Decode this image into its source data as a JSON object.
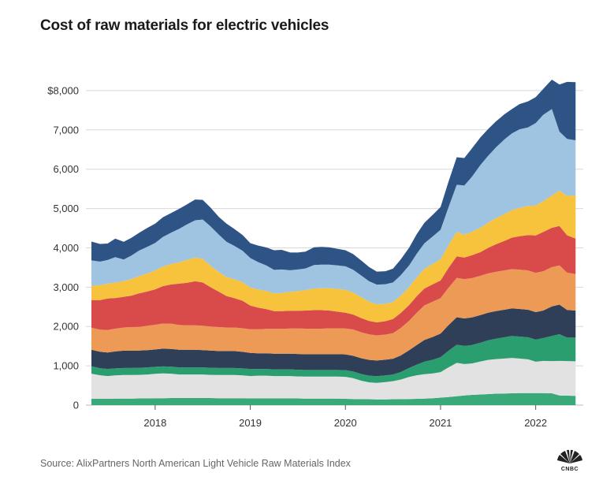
{
  "header": {
    "title": "Cost of raw materials for electric vehicles"
  },
  "footer": {
    "source": "Source: AlixPartners North American Light Vehicle Raw Materials Index",
    "logo_text": "CNBC",
    "logo": "cnbc-peacock-logo"
  },
  "chart_data": {
    "type": "area",
    "stacked": true,
    "title": "Cost of raw materials for electric vehicles",
    "xlabel": "",
    "ylabel": "",
    "ylim": [
      0,
      8700
    ],
    "yticks": [
      0,
      1000,
      2000,
      3000,
      4000,
      5000,
      6000,
      7000,
      8000
    ],
    "ytick_labels": [
      "0",
      "1,000",
      "2,000",
      "3,000",
      "4,000",
      "5,000",
      "6,000",
      "7,000",
      "$8,000"
    ],
    "xlim": [
      2017.33,
      2022.5
    ],
    "xticks": [
      2018,
      2019,
      2020,
      2021,
      2022
    ],
    "xtick_labels": [
      "2018",
      "2019",
      "2020",
      "2021",
      "2022"
    ],
    "grid": true,
    "x": [
      2017.33,
      2017.42,
      2017.5,
      2017.58,
      2017.67,
      2017.75,
      2017.83,
      2017.92,
      2018,
      2018.08,
      2018.17,
      2018.25,
      2018.33,
      2018.42,
      2018.5,
      2018.58,
      2018.67,
      2018.75,
      2018.83,
      2018.92,
      2019,
      2019.08,
      2019.17,
      2019.25,
      2019.33,
      2019.42,
      2019.5,
      2019.58,
      2019.67,
      2019.75,
      2019.83,
      2019.92,
      2020,
      2020.08,
      2020.17,
      2020.25,
      2020.33,
      2020.42,
      2020.5,
      2020.58,
      2020.67,
      2020.75,
      2020.83,
      2020.92,
      2021,
      2021.08,
      2021.17,
      2021.25,
      2021.33,
      2021.42,
      2021.5,
      2021.58,
      2021.67,
      2021.75,
      2021.83,
      2021.92,
      2022,
      2022.08,
      2022.17,
      2022.25,
      2022.33,
      2022.42
    ],
    "series": [
      {
        "color": "#3aa97a",
        "values": [
          160,
          160,
          160,
          165,
          165,
          165,
          170,
          170,
          175,
          175,
          180,
          180,
          180,
          180,
          180,
          180,
          175,
          175,
          175,
          175,
          170,
          170,
          170,
          170,
          170,
          170,
          170,
          165,
          165,
          165,
          165,
          165,
          160,
          155,
          150,
          150,
          145,
          145,
          150,
          150,
          155,
          160,
          165,
          175,
          190,
          205,
          225,
          245,
          260,
          270,
          280,
          290,
          295,
          300,
          305,
          305,
          305,
          305,
          300,
          245,
          240,
          235
        ]
      },
      {
        "color": "#e2e2e2",
        "values": [
          640,
          600,
          580,
          590,
          600,
          600,
          600,
          610,
          620,
          630,
          620,
          600,
          600,
          600,
          600,
          590,
          590,
          590,
          590,
          580,
          570,
          580,
          580,
          570,
          570,
          570,
          560,
          560,
          560,
          560,
          560,
          560,
          560,
          530,
          470,
          430,
          420,
          440,
          460,
          500,
          560,
          600,
          620,
          630,
          650,
          750,
          850,
          800,
          800,
          840,
          870,
          880,
          890,
          900,
          880,
          860,
          800,
          820,
          820,
          880,
          880,
          880
        ]
      },
      {
        "color": "#2a9e6e",
        "values": [
          190,
          180,
          180,
          180,
          180,
          180,
          180,
          180,
          180,
          180,
          180,
          180,
          180,
          180,
          180,
          180,
          180,
          180,
          180,
          180,
          180,
          170,
          170,
          170,
          170,
          170,
          170,
          170,
          170,
          170,
          170,
          170,
          170,
          170,
          170,
          170,
          170,
          170,
          170,
          190,
          230,
          270,
          320,
          350,
          380,
          420,
          460,
          460,
          470,
          480,
          500,
          520,
          540,
          560,
          560,
          560,
          560,
          580,
          640,
          680,
          600,
          600
        ]
      },
      {
        "color": "#2e3f57",
        "values": [
          420,
          420,
          420,
          430,
          440,
          440,
          440,
          440,
          440,
          450,
          450,
          450,
          450,
          450,
          440,
          440,
          430,
          430,
          430,
          420,
          410,
          400,
          400,
          400,
          400,
          400,
          400,
          400,
          400,
          400,
          400,
          400,
          400,
          400,
          400,
          400,
          400,
          400,
          400,
          420,
          450,
          500,
          550,
          580,
          600,
          650,
          700,
          700,
          700,
          700,
          700,
          700,
          700,
          700,
          700,
          700,
          700,
          700,
          750,
          750,
          700,
          690
        ]
      },
      {
        "color": "#ee9a57",
        "values": [
          560,
          560,
          570,
          580,
          590,
          600,
          600,
          620,
          630,
          640,
          640,
          630,
          620,
          620,
          620,
          610,
          610,
          600,
          600,
          600,
          600,
          610,
          620,
          630,
          630,
          640,
          650,
          650,
          650,
          650,
          660,
          660,
          660,
          670,
          660,
          650,
          640,
          640,
          650,
          700,
          750,
          820,
          880,
          900,
          900,
          950,
          1000,
          1000,
          1000,
          1000,
          1000,
          1000,
          1000,
          1000,
          1000,
          1000,
          1000,
          1000,
          1000,
          1000,
          950,
          930
        ]
      },
      {
        "color": "#d94a4a",
        "values": [
          700,
          750,
          800,
          780,
          780,
          800,
          850,
          870,
          900,
          950,
          1000,
          1050,
          1080,
          1120,
          1100,
          1000,
          900,
          800,
          750,
          700,
          600,
          550,
          500,
          450,
          450,
          450,
          450,
          460,
          470,
          470,
          450,
          420,
          400,
          380,
          360,
          340,
          330,
          340,
          360,
          380,
          400,
          420,
          430,
          440,
          450,
          500,
          550,
          550,
          580,
          600,
          650,
          700,
          750,
          800,
          850,
          900,
          950,
          1000,
          1000,
          1000,
          950,
          900
        ]
      },
      {
        "color": "#f7c23c",
        "values": [
          360,
          380,
          380,
          390,
          400,
          420,
          440,
          460,
          480,
          500,
          520,
          540,
          580,
          600,
          600,
          550,
          500,
          480,
          480,
          470,
          460,
          460,
          460,
          450,
          460,
          480,
          500,
          520,
          550,
          560,
          570,
          580,
          580,
          560,
          530,
          490,
          460,
          440,
          430,
          440,
          460,
          480,
          500,
          520,
          540,
          580,
          620,
          580,
          600,
          620,
          640,
          660,
          680,
          700,
          720,
          740,
          760,
          780,
          820,
          900,
          1000,
          1100
        ]
      },
      {
        "color": "#9fc4e2",
        "values": [
          650,
          600,
          600,
          650,
          550,
          600,
          650,
          680,
          700,
          750,
          800,
          850,
          900,
          950,
          1000,
          1000,
          950,
          900,
          850,
          800,
          750,
          700,
          650,
          600,
          600,
          550,
          550,
          550,
          600,
          600,
          600,
          600,
          600,
          580,
          550,
          520,
          500,
          500,
          500,
          520,
          550,
          600,
          650,
          700,
          750,
          950,
          1200,
          1250,
          1400,
          1600,
          1700,
          1800,
          1900,
          1950,
          2000,
          2000,
          2100,
          2200,
          2200,
          1500,
          1450,
          1400
        ]
      },
      {
        "color": "#2e5486",
        "values": [
          480,
          450,
          420,
          470,
          450,
          450,
          450,
          480,
          490,
          500,
          500,
          510,
          510,
          530,
          500,
          480,
          450,
          460,
          430,
          400,
          380,
          420,
          460,
          500,
          500,
          450,
          430,
          430,
          450,
          450,
          440,
          420,
          410,
          400,
          380,
          360,
          330,
          330,
          350,
          400,
          450,
          500,
          520,
          550,
          580,
          650,
          700,
          700,
          720,
          700,
          680,
          660,
          640,
          620,
          640,
          660,
          660,
          660,
          750,
          1200,
          1450,
          1480
        ]
      }
    ]
  }
}
